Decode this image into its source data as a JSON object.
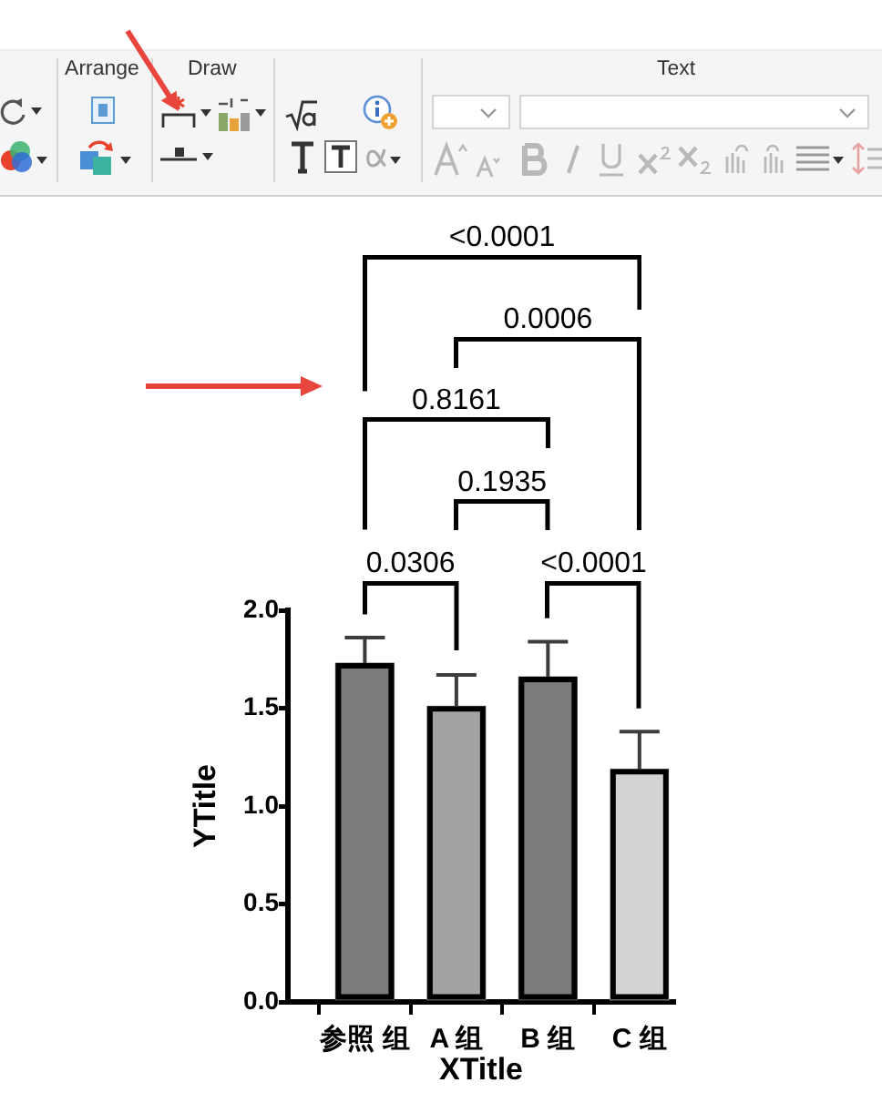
{
  "chart_data": {
    "type": "bar",
    "xlabel": "XTitle",
    "ylabel": "YTitle",
    "categories": [
      "参照 组",
      "A 组",
      "B 组",
      "C 组"
    ],
    "values": [
      1.73,
      1.51,
      1.66,
      1.19
    ],
    "colors": [
      "#7b7b7b",
      "#a3a3a5",
      "#7b7b7b",
      "#d3d3d3"
    ],
    "errors": [
      [
        1.73,
        1.86
      ],
      [
        1.51,
        1.67
      ],
      [
        1.66,
        1.84
      ],
      [
        1.19,
        1.38
      ]
    ],
    "ylim": [
      0,
      2
    ],
    "yticks": [
      {
        "value": 0,
        "label": "0.0"
      },
      0.5,
      {
        "value": 1,
        "label": "1.0"
      },
      1.5,
      {
        "value": 2,
        "label": "2.0"
      }
    ],
    "annotations": [
      "0.0306",
      "0.1935",
      "<0.0001",
      "0.8161",
      "0.0006",
      "<0.0001",
      "Arrange",
      "Draw",
      "Text"
    ]
  }
}
